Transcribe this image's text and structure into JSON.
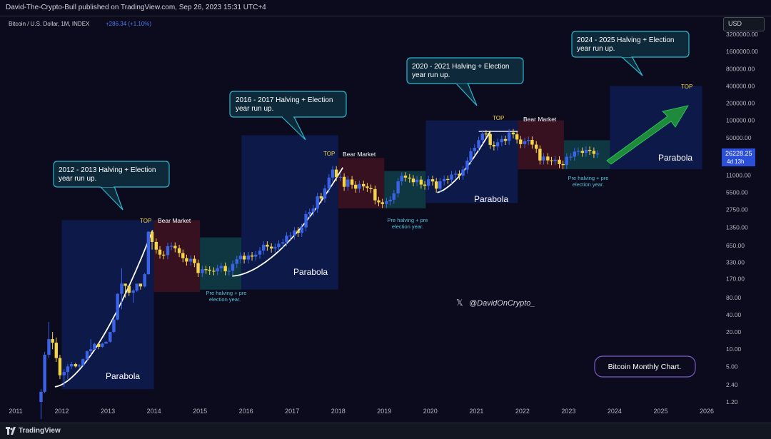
{
  "header": {
    "publisher": "David-The-Crypto-Bull published on TradingView.com, Sep 26, 2023 15:31 UTC+4"
  },
  "symbol": {
    "name": "Bitcoin / U.S. Dollar, 1M, INDEX",
    "change": "+286.34 (+1.10%)"
  },
  "currency_button": "USD",
  "price_label": {
    "price": "26228.25",
    "countdown": "4d 13h"
  },
  "watermark": "@DavidOnCrypto_",
  "footer": {
    "brand": "TradingView"
  },
  "colors": {
    "background": "#0b0b1d",
    "candle_up": "#3b63e8",
    "candle_down": "#f5d547",
    "parabola_zone": "#0e1a4c",
    "bear_zone": "#3a1220",
    "prehalving_zone": "#0f3a44",
    "callout_border": "#2ab7cf",
    "arrow": "#1f8a3c"
  },
  "chart_data": {
    "type": "candlestick",
    "scale": "log",
    "x_axis": {
      "ticks": [
        "2011",
        "2012",
        "2013",
        "2014",
        "2015",
        "2016",
        "2017",
        "2018",
        "2019",
        "2020",
        "2021",
        "2022",
        "2023",
        "2024",
        "2025",
        "2026"
      ]
    },
    "y_axis": {
      "ticks": [
        "3200000.00",
        "1600000.00",
        "800000.00",
        "400000.00",
        "200000.00",
        "100000.00",
        "50000.00",
        "26228.25",
        "11000.00",
        "5500.00",
        "2750.00",
        "1350.00",
        "650.00",
        "330.00",
        "170.00",
        "80.00",
        "40.00",
        "20.00",
        "10.00",
        "5.00",
        "2.40",
        "1.20"
      ],
      "range": [
        1.2,
        3200000
      ]
    },
    "series": [
      {
        "name": "Bitcoin / U.S. Dollar",
        "ohlc_monthly_approx": [
          {
            "t": 2011.55,
            "o": 1.2,
            "h": 2.0,
            "l": 0.6,
            "c": 1.8
          },
          {
            "t": 2011.63,
            "o": 1.8,
            "h": 9,
            "l": 1.7,
            "c": 8
          },
          {
            "t": 2011.72,
            "o": 8,
            "h": 30,
            "l": 7,
            "c": 15
          },
          {
            "t": 2011.8,
            "o": 15,
            "h": 20,
            "l": 10,
            "c": 13
          },
          {
            "t": 2011.88,
            "o": 13,
            "h": 16,
            "l": 6,
            "c": 7
          },
          {
            "t": 2011.96,
            "o": 7,
            "h": 8,
            "l": 3,
            "c": 3.5
          },
          {
            "t": 2012.05,
            "o": 3.5,
            "h": 4.5,
            "l": 2.2,
            "c": 4
          },
          {
            "t": 2012.13,
            "o": 4,
            "h": 5.5,
            "l": 3,
            "c": 5
          },
          {
            "t": 2012.21,
            "o": 5,
            "h": 6,
            "l": 4.5,
            "c": 5.5
          },
          {
            "t": 2012.3,
            "o": 5.5,
            "h": 5.8,
            "l": 4.8,
            "c": 5
          },
          {
            "t": 2012.38,
            "o": 5,
            "h": 5.5,
            "l": 4.7,
            "c": 5.2
          },
          {
            "t": 2012.46,
            "o": 5.2,
            "h": 6.9,
            "l": 5,
            "c": 6.7
          },
          {
            "t": 2012.55,
            "o": 6.7,
            "h": 9.5,
            "l": 6.3,
            "c": 9.2
          },
          {
            "t": 2012.63,
            "o": 9.2,
            "h": 15,
            "l": 8,
            "c": 10
          },
          {
            "t": 2012.71,
            "o": 10,
            "h": 13,
            "l": 9.8,
            "c": 12.4
          },
          {
            "t": 2012.8,
            "o": 12.4,
            "h": 13,
            "l": 10,
            "c": 11
          },
          {
            "t": 2012.88,
            "o": 11,
            "h": 13,
            "l": 10.5,
            "c": 12.5
          },
          {
            "t": 2012.96,
            "o": 12.5,
            "h": 13.7,
            "l": 12.5,
            "c": 13.5
          },
          {
            "t": 2013.05,
            "o": 13.5,
            "h": 20,
            "l": 13,
            "c": 20
          },
          {
            "t": 2013.13,
            "o": 20,
            "h": 34,
            "l": 19,
            "c": 33
          },
          {
            "t": 2013.21,
            "o": 33,
            "h": 95,
            "l": 32,
            "c": 93
          },
          {
            "t": 2013.3,
            "o": 93,
            "h": 260,
            "l": 50,
            "c": 140
          },
          {
            "t": 2013.38,
            "o": 140,
            "h": 140,
            "l": 80,
            "c": 128
          },
          {
            "t": 2013.46,
            "o": 128,
            "h": 130,
            "l": 85,
            "c": 97
          },
          {
            "t": 2013.55,
            "o": 97,
            "h": 112,
            "l": 65,
            "c": 106
          },
          {
            "t": 2013.63,
            "o": 106,
            "h": 130,
            "l": 100,
            "c": 140
          },
          {
            "t": 2013.71,
            "o": 140,
            "h": 140,
            "l": 110,
            "c": 125
          },
          {
            "t": 2013.8,
            "o": 125,
            "h": 215,
            "l": 120,
            "c": 205
          },
          {
            "t": 2013.88,
            "o": 205,
            "h": 1160,
            "l": 200,
            "c": 1130
          },
          {
            "t": 2013.96,
            "o": 1130,
            "h": 1200,
            "l": 550,
            "c": 750
          }
        ]
      }
    ],
    "annotations": [
      {
        "text": "2012 - 2013 Halving + Election year run up."
      },
      {
        "text": "2016 - 2017 Halving + Election year run up."
      },
      {
        "text": "2020 - 2021 Halving + Election year run up."
      },
      {
        "text": "2024 - 2025 Halving + Election year run up."
      },
      {
        "text": "Parabola"
      },
      {
        "text": "Bear Market"
      },
      {
        "text": "TOP"
      },
      {
        "text": "Pre halving + pre election year."
      },
      {
        "text": "Bitcoin Monthly Chart."
      }
    ]
  },
  "labels": {
    "top": "TOP",
    "bear": "Bear Market",
    "parabola": "Parabola",
    "pre1": "Pre halving + pre",
    "pre2": "election year.",
    "callout1_l1": "2012 - 2013 Halving + Election",
    "callout1_l2": "year run up.",
    "callout2_l1": "2016 - 2017 Halving + Election",
    "callout2_l2": "year run up.",
    "callout3_l1": "2020 - 2021 Halving + Election",
    "callout3_l2": "year run up.",
    "callout4_l1": "2024 - 2025 Halving + Election",
    "callout4_l2": "year run up.",
    "monthly": "Bitcoin Monthly Chart."
  }
}
